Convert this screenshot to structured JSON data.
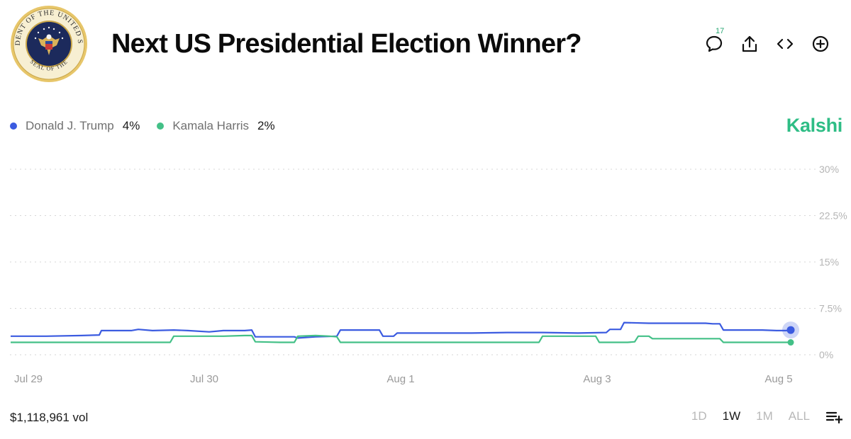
{
  "header": {
    "title": "Next US Presidential Election Winner?",
    "comment_count": "17",
    "icons": [
      "comment-icon",
      "share-icon",
      "embed-icon",
      "add-icon"
    ]
  },
  "seal": {
    "text_top": "PRESIDENT OF THE UNITED STATES",
    "text_bottom": "SEAL OF THE",
    "color_ring": "#e7c66a",
    "color_center": "#1c2a5c"
  },
  "legend": [
    {
      "name": "Donald J. Trump",
      "pct": "4%",
      "color": "#3b5be0"
    },
    {
      "name": "Kamala Harris",
      "pct": "2%",
      "color": "#43c087"
    }
  ],
  "brand": "Kalshi",
  "footer": {
    "volume": "$1,118,961 vol",
    "ranges": [
      "1D",
      "1W",
      "1M",
      "ALL"
    ],
    "active_range": "1W"
  },
  "chart_data": {
    "type": "line",
    "x_ticks": [
      "Jul 29",
      "Jul 30",
      "Aug 1",
      "Aug 3",
      "Aug 5"
    ],
    "y_ticks": [
      "30%",
      "22.5%",
      "15%",
      "7.5%",
      "0%"
    ],
    "ylim": [
      0,
      30
    ],
    "grid": true,
    "legend_position": "top-left",
    "series": [
      {
        "name": "Donald J. Trump",
        "color": "#3b5be0",
        "points": [
          [
            0,
            3.0
          ],
          [
            0.05,
            3.0
          ],
          [
            0.1,
            3.1
          ],
          [
            0.125,
            3.2
          ],
          [
            0.128,
            3.9
          ],
          [
            0.17,
            3.9
          ],
          [
            0.18,
            4.1
          ],
          [
            0.2,
            3.9
          ],
          [
            0.23,
            4.0
          ],
          [
            0.25,
            3.9
          ],
          [
            0.28,
            3.7
          ],
          [
            0.3,
            3.9
          ],
          [
            0.33,
            3.9
          ],
          [
            0.34,
            4.0
          ],
          [
            0.345,
            2.9
          ],
          [
            0.38,
            2.9
          ],
          [
            0.4,
            2.9
          ],
          [
            0.405,
            2.7
          ],
          [
            0.43,
            2.9
          ],
          [
            0.46,
            3.0
          ],
          [
            0.465,
            4.0
          ],
          [
            0.5,
            4.0
          ],
          [
            0.52,
            4.0
          ],
          [
            0.525,
            3.0
          ],
          [
            0.54,
            3.0
          ],
          [
            0.545,
            3.5
          ],
          [
            0.6,
            3.5
          ],
          [
            0.65,
            3.5
          ],
          [
            0.7,
            3.6
          ],
          [
            0.75,
            3.6
          ],
          [
            0.8,
            3.5
          ],
          [
            0.84,
            3.6
          ],
          [
            0.845,
            4.1
          ],
          [
            0.86,
            4.1
          ],
          [
            0.865,
            5.2
          ],
          [
            0.9,
            5.1
          ],
          [
            0.95,
            5.1
          ],
          [
            0.98,
            5.1
          ],
          [
            0.99,
            5.0
          ],
          [
            1.0,
            5.0
          ],
          [
            1.005,
            4.0
          ],
          [
            1.04,
            4.0
          ],
          [
            1.06,
            4.0
          ],
          [
            1.08,
            3.9
          ],
          [
            1.1,
            3.9
          ]
        ],
        "last_value": 4
      },
      {
        "name": "Kamala Harris",
        "color": "#43c087",
        "points": [
          [
            0,
            2.0
          ],
          [
            0.05,
            2.0
          ],
          [
            0.1,
            2.0
          ],
          [
            0.15,
            2.0
          ],
          [
            0.2,
            2.0
          ],
          [
            0.225,
            2.0
          ],
          [
            0.23,
            3.0
          ],
          [
            0.27,
            3.0
          ],
          [
            0.3,
            3.0
          ],
          [
            0.33,
            3.1
          ],
          [
            0.34,
            3.1
          ],
          [
            0.345,
            2.1
          ],
          [
            0.38,
            2.0
          ],
          [
            0.4,
            2.0
          ],
          [
            0.405,
            3.0
          ],
          [
            0.43,
            3.1
          ],
          [
            0.45,
            3.0
          ],
          [
            0.46,
            2.9
          ],
          [
            0.465,
            2.0
          ],
          [
            0.5,
            2.0
          ],
          [
            0.55,
            2.0
          ],
          [
            0.6,
            2.0
          ],
          [
            0.65,
            2.0
          ],
          [
            0.7,
            2.0
          ],
          [
            0.745,
            2.0
          ],
          [
            0.75,
            3.0
          ],
          [
            0.8,
            3.0
          ],
          [
            0.825,
            3.0
          ],
          [
            0.83,
            2.0
          ],
          [
            0.87,
            2.0
          ],
          [
            0.88,
            2.1
          ],
          [
            0.885,
            3.0
          ],
          [
            0.9,
            3.0
          ],
          [
            0.905,
            2.6
          ],
          [
            0.94,
            2.6
          ],
          [
            0.97,
            2.6
          ],
          [
            0.99,
            2.6
          ],
          [
            1.0,
            2.6
          ],
          [
            1.005,
            2.0
          ],
          [
            1.05,
            2.0
          ],
          [
            1.1,
            2.0
          ]
        ],
        "last_value": 2
      }
    ]
  }
}
